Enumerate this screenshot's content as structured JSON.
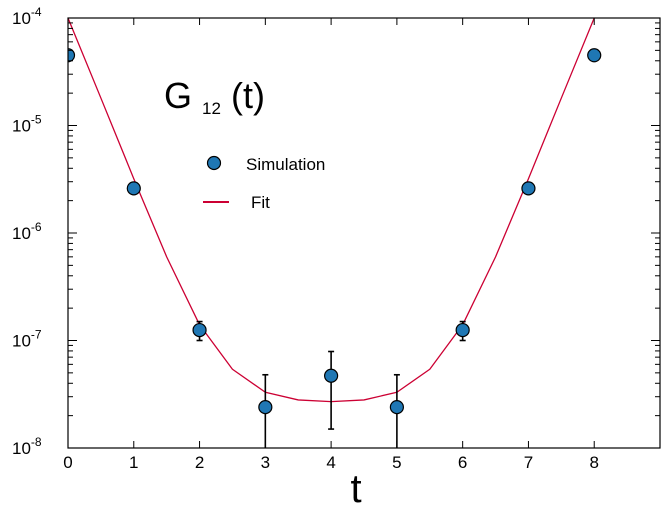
{
  "chart_data": {
    "type": "scatter",
    "xlabel": "t",
    "annotation": {
      "main": "G",
      "subscript": "12",
      "suffix": "(t)"
    },
    "x_ticks": [
      "0",
      "1",
      "2",
      "3",
      "4",
      "5",
      "6",
      "7",
      "8"
    ],
    "y_ticks": [
      {
        "base": "10",
        "exp": "-8"
      },
      {
        "base": "10",
        "exp": "-7"
      },
      {
        "base": "10",
        "exp": "-6"
      },
      {
        "base": "10",
        "exp": "-5"
      },
      {
        "base": "10",
        "exp": "-4"
      }
    ],
    "xlim": [
      0,
      9
    ],
    "ylim": [
      1e-08,
      0.0001
    ],
    "yscale": "log",
    "grid": false,
    "legend_position": "upper-center",
    "series": [
      {
        "name": "Simulation",
        "kind": "points-with-errorbars",
        "color": "#1f77b4",
        "x": [
          0,
          1,
          2,
          3,
          4,
          5,
          6,
          7,
          8
        ],
        "y": [
          4.5e-05,
          2.6e-06,
          1.25e-07,
          2.4e-08,
          4.7e-08,
          2.4e-08,
          1.25e-07,
          2.6e-06,
          4.5e-05
        ],
        "err_low": [
          4.5e-05,
          2.6e-06,
          1e-07,
          1e-08,
          1.5e-08,
          1e-08,
          1e-07,
          2.6e-06,
          4.5e-05
        ],
        "err_high": [
          4.5e-05,
          2.6e-06,
          1.5e-07,
          4.8e-08,
          7.9e-08,
          4.8e-08,
          1.5e-07,
          2.6e-06,
          4.5e-05
        ]
      },
      {
        "name": "Fit",
        "kind": "line",
        "color": "#cc0033",
        "x": [
          0,
          0.5,
          1,
          1.5,
          2,
          2.5,
          3,
          3.5,
          4,
          4.5,
          5,
          5.5,
          6,
          6.5,
          7,
          7.5,
          8
        ],
        "y": [
          0.0001,
          1.8e-05,
          3.2e-06,
          6e-07,
          1.4e-07,
          5.4e-08,
          3.3e-08,
          2.8e-08,
          2.7e-08,
          2.8e-08,
          3.3e-08,
          5.4e-08,
          1.4e-07,
          6e-07,
          3.2e-06,
          1.8e-05,
          0.0001
        ]
      }
    ]
  }
}
